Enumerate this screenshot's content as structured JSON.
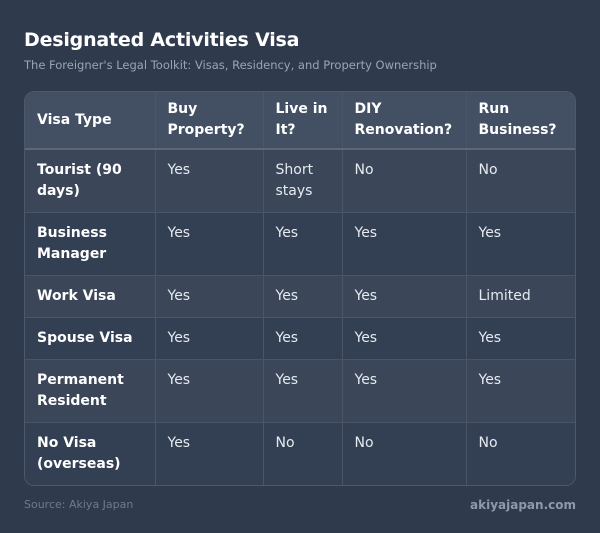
{
  "header": {
    "title": "Designated Activities Visa",
    "subtitle": "The Foreigner's Legal Toolkit: Visas, Residency, and Property Ownership"
  },
  "table": {
    "columns": [
      "Visa Type",
      "Buy Property?",
      "Live in It?",
      "DIY Renovation?",
      "Run Business?"
    ],
    "rows": [
      [
        "Tourist (90 days)",
        "Yes",
        "Short stays",
        "No",
        "No"
      ],
      [
        "Business Manager",
        "Yes",
        "Yes",
        "Yes",
        "Yes"
      ],
      [
        "Work Visa",
        "Yes",
        "Yes",
        "Yes",
        "Limited"
      ],
      [
        "Spouse Visa",
        "Yes",
        "Yes",
        "Yes",
        "Yes"
      ],
      [
        "Permanent Resident",
        "Yes",
        "Yes",
        "Yes",
        "Yes"
      ],
      [
        "No Visa (overseas)",
        "Yes",
        "No",
        "No",
        "No"
      ]
    ]
  },
  "footer": {
    "source": "Source: Akiya Japan",
    "site": "akiyajapan.com"
  }
}
